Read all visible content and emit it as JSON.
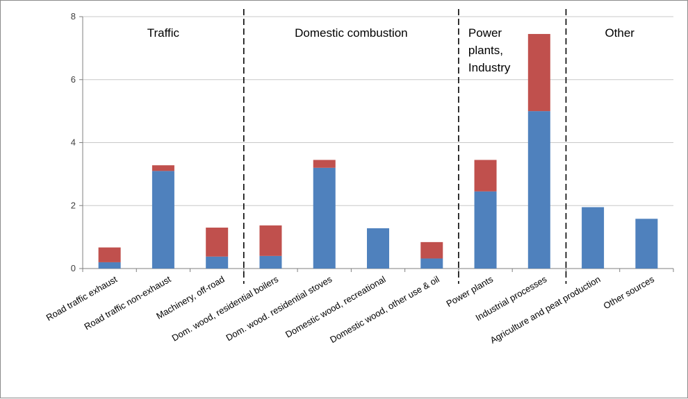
{
  "chart_data": {
    "type": "bar",
    "stacked": true,
    "title": "",
    "xlabel": "",
    "ylabel": "",
    "ylim": [
      0,
      8
    ],
    "yticks": [
      0,
      2,
      4,
      6,
      8
    ],
    "grid": "horizontal",
    "categories": [
      "Road traffic exhaust",
      "Road traffic non-exhaust",
      "Machinery, off-road",
      "Dom. wood, residential boilers",
      "Dom. wood. residential stoves",
      "Domestic wood, recreational",
      "Domestic wood, other use & oil",
      "Power plants",
      "Industrial processes",
      "Agriculture and peat production",
      "Other sources"
    ],
    "series": [
      {
        "color": "#4F81BD",
        "values": [
          0.2,
          3.1,
          0.38,
          0.4,
          3.2,
          1.28,
          0.32,
          2.45,
          5.0,
          1.95,
          1.58
        ]
      },
      {
        "color": "#C0504D",
        "values": [
          0.47,
          0.18,
          0.92,
          0.97,
          0.25,
          0.0,
          0.52,
          1.0,
          2.45,
          0.0,
          0.0
        ]
      }
    ],
    "groups": [
      {
        "label_lines": [
          "Traffic"
        ],
        "start": 0,
        "end": 2
      },
      {
        "label_lines": [
          "Domestic combustion"
        ],
        "start": 3,
        "end": 6
      },
      {
        "label_lines": [
          "Power",
          "plants,",
          "Industry"
        ],
        "start": 7,
        "end": 8
      },
      {
        "label_lines": [
          "Other"
        ],
        "start": 9,
        "end": 10
      }
    ]
  }
}
